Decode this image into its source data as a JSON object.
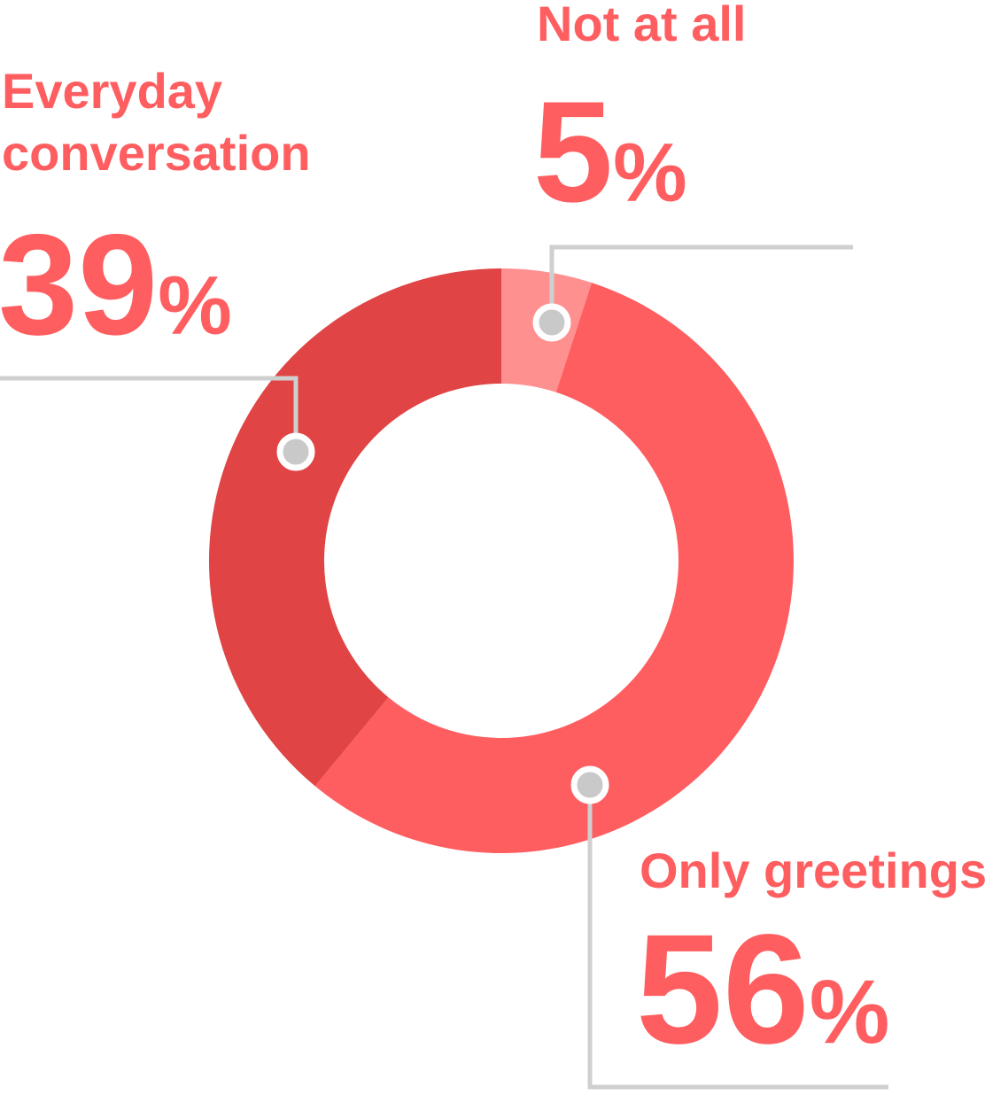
{
  "chart_data": {
    "type": "pie",
    "variant": "donut",
    "slices": [
      {
        "label": "Not at all",
        "value": 5,
        "display": "5",
        "color": "#ff9090"
      },
      {
        "label": "Only greetings",
        "value": 56,
        "display": "56",
        "color": "#ff5e60"
      },
      {
        "label": "Everyday conversation",
        "value": 39,
        "display": "39",
        "color": "#e04444"
      }
    ],
    "label_lines": {
      "Not at all": [
        "Not at all"
      ],
      "Only greetings": [
        "Only greetings"
      ],
      "Everyday conversation": [
        "Everyday",
        "conversation"
      ]
    },
    "percent_symbol": "%",
    "connector_color": "#cfcfcf",
    "marker_color": "#c9c9c9",
    "text_color": "#ff5e60"
  }
}
